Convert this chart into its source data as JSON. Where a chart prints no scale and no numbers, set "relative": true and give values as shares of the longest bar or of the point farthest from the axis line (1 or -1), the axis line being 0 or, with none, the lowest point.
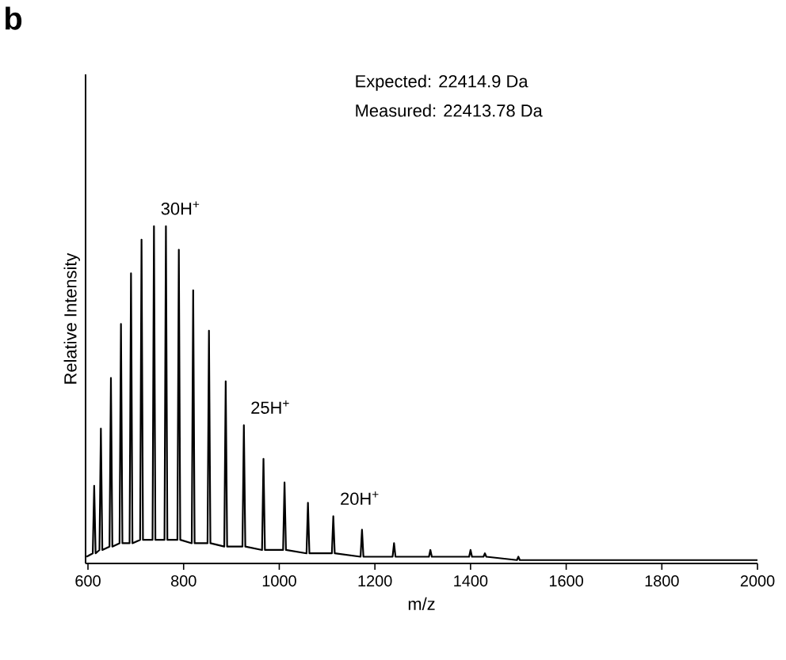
{
  "chart_data": {
    "type": "line",
    "title": "b",
    "xlabel": "m/z",
    "ylabel": "Relative Intensity",
    "relative": true,
    "color": "#000000",
    "xlim": [
      595,
      2000
    ],
    "xticks": [
      600,
      800,
      1000,
      1200,
      1400,
      1600,
      1800,
      2000
    ],
    "x": [
      597,
      610,
      613,
      616,
      624,
      627,
      630,
      645,
      648,
      651,
      666,
      669,
      672,
      687,
      690,
      693,
      709,
      712,
      715,
      735,
      738,
      741,
      760,
      763,
      766,
      787,
      790,
      793,
      817,
      820,
      823,
      850,
      853,
      856,
      885,
      888,
      891,
      923,
      926,
      929,
      964,
      967,
      970,
      1008,
      1011,
      1014,
      1057,
      1060,
      1063,
      1110,
      1113,
      1116,
      1170,
      1173,
      1176,
      1237,
      1240,
      1243,
      1313,
      1316,
      1319,
      1397,
      1400,
      1403,
      1427,
      1430,
      1433,
      1497,
      1500,
      1503,
      1614,
      1617,
      1620,
      2000
    ],
    "values": [
      0.02,
      0.03,
      0.23,
      0.03,
      0.04,
      0.4,
      0.04,
      0.05,
      0.55,
      0.05,
      0.06,
      0.71,
      0.06,
      0.06,
      0.86,
      0.06,
      0.07,
      0.96,
      0.07,
      0.07,
      1.0,
      0.07,
      0.07,
      1.0,
      0.07,
      0.07,
      0.93,
      0.07,
      0.06,
      0.81,
      0.06,
      0.06,
      0.69,
      0.06,
      0.05,
      0.54,
      0.05,
      0.05,
      0.41,
      0.05,
      0.04,
      0.31,
      0.04,
      0.04,
      0.24,
      0.04,
      0.03,
      0.18,
      0.03,
      0.03,
      0.14,
      0.03,
      0.02,
      0.1,
      0.02,
      0.02,
      0.06,
      0.02,
      0.02,
      0.04,
      0.02,
      0.02,
      0.04,
      0.02,
      0.02,
      0.03,
      0.02,
      0.01,
      0.02,
      0.01,
      0.01,
      0.01,
      0.01,
      0.01
    ],
    "annotations": [
      "Expected: 22414.9 Da",
      "Measured: 22413.78 Da",
      {
        "text": "30H$^{+}$",
        "x": 738,
        "y": 1.0
      },
      {
        "text": "25H$^{+}$",
        "x": 926,
        "y": 0.41
      },
      {
        "text": "20H$^{+}$",
        "x": 1113,
        "y": 0.14
      }
    ]
  }
}
